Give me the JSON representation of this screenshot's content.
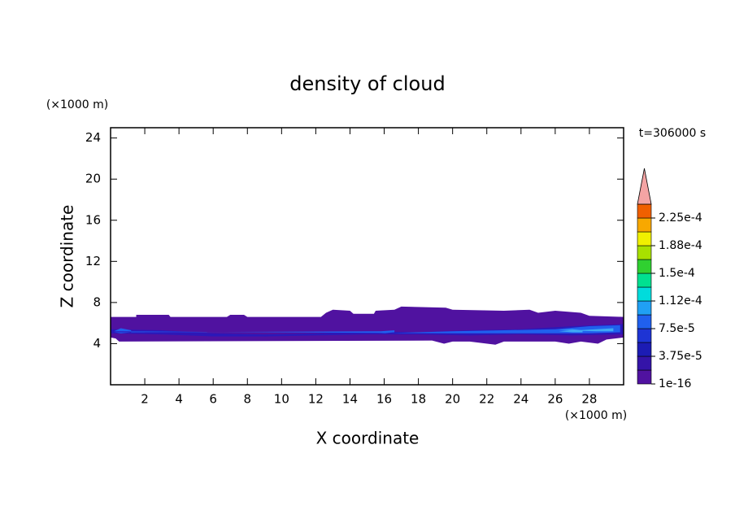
{
  "chart_data": {
    "type": "contour",
    "title": "density of cloud",
    "xlabel": "X coordinate",
    "ylabel": "Z coordinate",
    "x_unit": "(×1000 m)",
    "y_unit": "(×1000 m)",
    "annotation": "t=306000 s",
    "xlim": [
      0,
      30
    ],
    "ylim": [
      0,
      25
    ],
    "xticks": [
      2,
      4,
      6,
      8,
      10,
      12,
      14,
      16,
      18,
      20,
      22,
      24,
      26,
      28
    ],
    "yticks": [
      4,
      8,
      12,
      16,
      20,
      24
    ],
    "colorbar": {
      "clim": [
        0,
        0.00024375
      ],
      "ticks": [
        {
          "value": 1e-16,
          "label": "1e-16"
        },
        {
          "value": 3.75e-05,
          "label": "3.75e-5"
        },
        {
          "value": 7.5e-05,
          "label": "7.5e-5"
        },
        {
          "value": 0.0001125,
          "label": "1.12e-4"
        },
        {
          "value": 0.00015,
          "label": "1.5e-4"
        },
        {
          "value": 0.0001875,
          "label": "1.88e-4"
        },
        {
          "value": 0.000225,
          "label": "2.25e-4"
        }
      ],
      "colors": [
        "#5012a0",
        "#3414a8",
        "#1c1cb4",
        "#1e34d4",
        "#2060ee",
        "#20a0f4",
        "#00dcdc",
        "#00e090",
        "#30d030",
        "#a8e000",
        "#f0f000",
        "#f8a800",
        "#f06000"
      ],
      "extend_color": "#f4a4a4"
    },
    "regions": [
      {
        "color": "#5012a0",
        "x": [
          0,
          0,
          1.5,
          1.5,
          3.4,
          3.5,
          6.8,
          7,
          7.8,
          8,
          12.3,
          12.6,
          13,
          14,
          14.2,
          15.4,
          15.5,
          16.6,
          17,
          19.6,
          20,
          23,
          24.5,
          25,
          26,
          27.5,
          28,
          30,
          30,
          29,
          28.5,
          27.5,
          26.8,
          26,
          23,
          22.5,
          21,
          20,
          19.5,
          18.8,
          0.5,
          0.3
        ],
        "y": [
          4.6,
          6.6,
          6.6,
          6.8,
          6.8,
          6.6,
          6.6,
          6.8,
          6.8,
          6.6,
          6.6,
          7.0,
          7.3,
          7.2,
          6.9,
          6.9,
          7.2,
          7.3,
          7.6,
          7.5,
          7.3,
          7.2,
          7.3,
          7.0,
          7.2,
          7.0,
          6.7,
          6.6,
          4.6,
          4.4,
          4.0,
          4.2,
          4.0,
          4.2,
          4.2,
          3.9,
          4.2,
          4.2,
          4.0,
          4.3,
          4.2,
          4.5
        ]
      },
      {
        "color": "#2c18b8",
        "x": [
          0,
          3,
          6,
          9,
          12,
          15,
          18,
          21,
          24,
          27,
          30,
          30,
          27,
          24,
          21,
          18,
          15,
          12,
          9,
          6,
          3,
          0
        ],
        "y": [
          5.4,
          5.3,
          5.0,
          4.9,
          5.0,
          5.2,
          5.1,
          5.3,
          5.4,
          5.7,
          5.9,
          4.9,
          4.8,
          4.9,
          4.8,
          4.9,
          4.9,
          4.8,
          4.7,
          4.7,
          4.9,
          5.0
        ]
      },
      {
        "color": "#2060ee",
        "x": [
          0.2,
          0.6,
          1.2,
          1.2,
          0.6,
          0.2,
          15.8,
          16.6,
          16.6,
          15.8,
          20,
          23,
          26,
          28,
          29.8,
          29.8,
          28,
          26,
          23,
          20
        ],
        "y": [
          5.2,
          5.5,
          5.3,
          5.1,
          5.0,
          5.1,
          5.2,
          5.3,
          5.1,
          5.0,
          5.2,
          5.3,
          5.4,
          5.7,
          5.8,
          5.1,
          5.0,
          5.0,
          5.0,
          5.0
        ]
      },
      {
        "color": "#40a8f4",
        "x": [
          26.2,
          27,
          27.6,
          27.6,
          27,
          26.2,
          28.4,
          29.4,
          29.4,
          28.4
        ],
        "y": [
          5.3,
          5.4,
          5.3,
          5.1,
          5.1,
          5.2,
          5.4,
          5.5,
          5.2,
          5.2
        ]
      }
    ]
  }
}
